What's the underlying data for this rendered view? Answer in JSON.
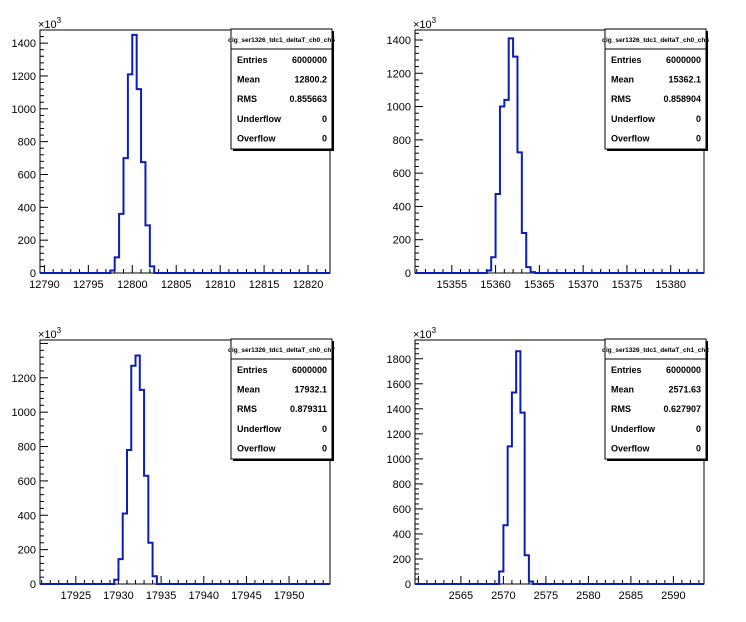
{
  "chart_data": [
    {
      "type": "bar",
      "histogram_name": "dig_ser1326_tdc1_deltaT_ch0_ch5",
      "y_multiplier": "×10",
      "y_multiplier_exp": "3",
      "xlim": [
        12789.5,
        12822.5
      ],
      "ylim": [
        0,
        1480
      ],
      "x_ticks": [
        12790,
        12795,
        12800,
        12805,
        12810,
        12815,
        12820
      ],
      "y_ticks": [
        0,
        200,
        400,
        600,
        800,
        1000,
        1200,
        1400
      ],
      "bin_edges": [
        12797.5,
        12798,
        12798.5,
        12799,
        12799.5,
        12800,
        12800.5,
        12801,
        12801.5,
        12802,
        12802.5
      ],
      "values": [
        15,
        95,
        360,
        700,
        1210,
        1450,
        1120,
        675,
        290,
        40
      ],
      "stats": [
        {
          "label": "Entries",
          "value": "6000000"
        },
        {
          "label": "Mean",
          "value": "12800.2"
        },
        {
          "label": "RMS",
          "value": "0.855663"
        },
        {
          "label": "Underflow",
          "value": "0"
        },
        {
          "label": "Overflow",
          "value": "0"
        }
      ]
    },
    {
      "type": "bar",
      "histogram_name": "dig_ser1326_tdc1_deltaT_ch0_ch6",
      "y_multiplier": "×10",
      "y_multiplier_exp": "3",
      "xlim": [
        15350.8,
        15383.8
      ],
      "ylim": [
        0,
        1460
      ],
      "x_ticks": [
        15355,
        15360,
        15365,
        15370,
        15375,
        15380
      ],
      "y_ticks": [
        0,
        200,
        400,
        600,
        800,
        1000,
        1200,
        1400
      ],
      "bin_edges": [
        15359,
        15359.5,
        15360,
        15360.5,
        15361,
        15361.5,
        15362,
        15362.5,
        15363,
        15363.5,
        15364,
        15364.5
      ],
      "values": [
        15,
        95,
        475,
        1000,
        1040,
        1410,
        1300,
        725,
        240,
        35,
        5
      ],
      "stats": [
        {
          "label": "Entries",
          "value": "6000000"
        },
        {
          "label": "Mean",
          "value": "15362.1"
        },
        {
          "label": "RMS",
          "value": "0.858904"
        },
        {
          "label": "Underflow",
          "value": "0"
        },
        {
          "label": "Overflow",
          "value": "0"
        }
      ]
    },
    {
      "type": "bar",
      "histogram_name": "dig_ser1326_tdc1_deltaT_ch0_ch7",
      "y_multiplier": "×10",
      "y_multiplier_exp": "3",
      "xlim": [
        17920.8,
        17954.8
      ],
      "ylim": [
        0,
        1420
      ],
      "x_ticks": [
        17925,
        17930,
        17935,
        17940,
        17945,
        17950
      ],
      "y_ticks": [
        0,
        200,
        400,
        600,
        800,
        1000,
        1200
      ],
      "bin_edges": [
        17929.5,
        17930,
        17930.5,
        17931,
        17931.5,
        17932,
        17932.5,
        17933,
        17933.5,
        17934,
        17934.5
      ],
      "values": [
        25,
        145,
        410,
        780,
        1270,
        1330,
        1130,
        630,
        240,
        45
      ],
      "stats": [
        {
          "label": "Entries",
          "value": "6000000"
        },
        {
          "label": "Mean",
          "value": "17932.1"
        },
        {
          "label": "RMS",
          "value": "0.879311"
        },
        {
          "label": "Underflow",
          "value": "0"
        },
        {
          "label": "Overflow",
          "value": "0"
        }
      ]
    },
    {
      "type": "bar",
      "histogram_name": "dig_ser1326_tdc1_deltaT_ch1_ch2",
      "y_multiplier": "×10",
      "y_multiplier_exp": "3",
      "xlim": [
        2559.6,
        2593.6
      ],
      "ylim": [
        0,
        1950
      ],
      "x_ticks": [
        2565,
        2570,
        2575,
        2580,
        2585,
        2590
      ],
      "y_ticks": [
        0,
        200,
        400,
        600,
        800,
        1000,
        1200,
        1400,
        1600,
        1800
      ],
      "bin_edges": [
        2569.5,
        2570,
        2570.5,
        2571,
        2571.5,
        2572,
        2572.5,
        2573,
        2573.5
      ],
      "values": [
        100,
        470,
        1100,
        1530,
        1860,
        1370,
        230,
        20
      ],
      "stats": [
        {
          "label": "Entries",
          "value": "6000000"
        },
        {
          "label": "Mean",
          "value": "2571.63"
        },
        {
          "label": "RMS",
          "value": "0.627907"
        },
        {
          "label": "Underflow",
          "value": "0"
        },
        {
          "label": "Overflow",
          "value": "0"
        }
      ]
    }
  ]
}
